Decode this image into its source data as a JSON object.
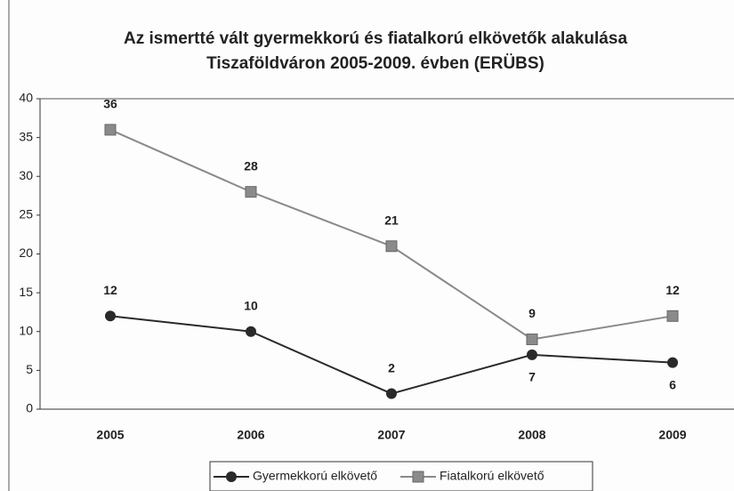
{
  "chart_data": {
    "type": "line",
    "title": [
      "Az ismertté vált gyermekkorú és fiatalkorú elkövetők alakulása",
      "Tiszaföldváron 2005-2009. évben (ERÜBS)"
    ],
    "categories": [
      "2005",
      "2006",
      "2007",
      "2008",
      "2009"
    ],
    "series": [
      {
        "name": "Gyermekkorú elkövető",
        "color": "#2a2a2a",
        "marker": "circle",
        "values": [
          12,
          10,
          2,
          7,
          6
        ]
      },
      {
        "name": "Fiatalkorú elkövető",
        "color": "#8a8a8a",
        "marker": "square",
        "values": [
          36,
          28,
          21,
          9,
          12
        ]
      }
    ],
    "ylim": [
      0,
      40
    ],
    "yticks": [
      0,
      5,
      10,
      15,
      20,
      25,
      30,
      35,
      40
    ],
    "grid": false,
    "legend": "bottom"
  }
}
